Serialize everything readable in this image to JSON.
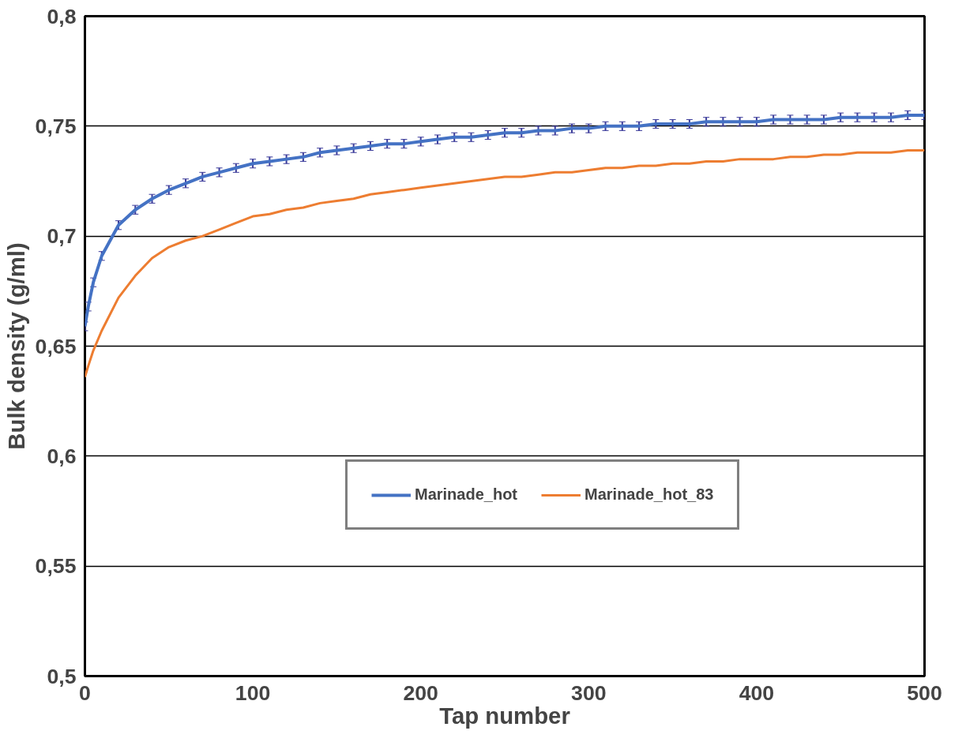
{
  "chart_data": {
    "type": "line",
    "xlabel": "Tap number",
    "ylabel": "Bulk density (g/ml)",
    "x": [
      0,
      2,
      5,
      10,
      20,
      30,
      40,
      50,
      60,
      70,
      80,
      90,
      100,
      110,
      120,
      130,
      140,
      150,
      160,
      170,
      180,
      190,
      200,
      210,
      220,
      230,
      240,
      250,
      260,
      270,
      280,
      290,
      300,
      310,
      320,
      330,
      340,
      350,
      360,
      370,
      380,
      390,
      400,
      410,
      420,
      430,
      440,
      450,
      460,
      470,
      480,
      490,
      500
    ],
    "series": [
      {
        "name": "Marinade_hot",
        "color": "#4472c4",
        "values": [
          0.659,
          0.668,
          0.679,
          0.691,
          0.705,
          0.712,
          0.717,
          0.721,
          0.724,
          0.727,
          0.729,
          0.731,
          0.733,
          0.734,
          0.735,
          0.736,
          0.738,
          0.739,
          0.74,
          0.741,
          0.742,
          0.742,
          0.743,
          0.744,
          0.745,
          0.745,
          0.746,
          0.747,
          0.747,
          0.748,
          0.748,
          0.749,
          0.749,
          0.75,
          0.75,
          0.75,
          0.751,
          0.751,
          0.751,
          0.752,
          0.752,
          0.752,
          0.752,
          0.753,
          0.753,
          0.753,
          0.753,
          0.754,
          0.754,
          0.754,
          0.754,
          0.755,
          0.755
        ],
        "errors": [
          0.002,
          0.002,
          0.002,
          0.002,
          0.002,
          0.002,
          0.002,
          0.002,
          0.002,
          0.002,
          0.002,
          0.002,
          0.002,
          0.002,
          0.002,
          0.002,
          0.002,
          0.002,
          0.002,
          0.002,
          0.002,
          0.002,
          0.002,
          0.002,
          0.002,
          0.002,
          0.002,
          0.002,
          0.002,
          0.002,
          0.002,
          0.002,
          0.002,
          0.002,
          0.002,
          0.002,
          0.002,
          0.002,
          0.002,
          0.002,
          0.002,
          0.002,
          0.002,
          0.002,
          0.002,
          0.002,
          0.002,
          0.002,
          0.002,
          0.002,
          0.002,
          0.002,
          0.002
        ]
      },
      {
        "name": "Marinade_hot_83",
        "color": "#ed7d31",
        "values": [
          0.636,
          0.641,
          0.648,
          0.657,
          0.672,
          0.682,
          0.69,
          0.695,
          0.698,
          0.7,
          0.703,
          0.706,
          0.709,
          0.71,
          0.712,
          0.713,
          0.715,
          0.716,
          0.717,
          0.719,
          0.72,
          0.721,
          0.722,
          0.723,
          0.724,
          0.725,
          0.726,
          0.727,
          0.727,
          0.728,
          0.729,
          0.729,
          0.73,
          0.731,
          0.731,
          0.732,
          0.732,
          0.733,
          0.733,
          0.734,
          0.734,
          0.735,
          0.735,
          0.735,
          0.736,
          0.736,
          0.737,
          0.737,
          0.738,
          0.738,
          0.738,
          0.739,
          0.739
        ]
      }
    ],
    "xlim": [
      0,
      500
    ],
    "xticks": [
      0,
      100,
      200,
      300,
      400,
      500
    ],
    "ylim": [
      0.5,
      0.8
    ],
    "yticks": [
      {
        "value": 0.5,
        "label": "0,5"
      },
      {
        "value": 0.55,
        "label": "0,55"
      },
      {
        "value": 0.6,
        "label": "0,6"
      },
      {
        "value": 0.65,
        "label": "0,65"
      },
      {
        "value": 0.7,
        "label": "0,7"
      },
      {
        "value": 0.75,
        "label": "0,75"
      },
      {
        "value": 0.8,
        "label": "0,8"
      }
    ],
    "grid": "y",
    "legend": "bottom right",
    "line_style": "solid",
    "marker": "none"
  }
}
